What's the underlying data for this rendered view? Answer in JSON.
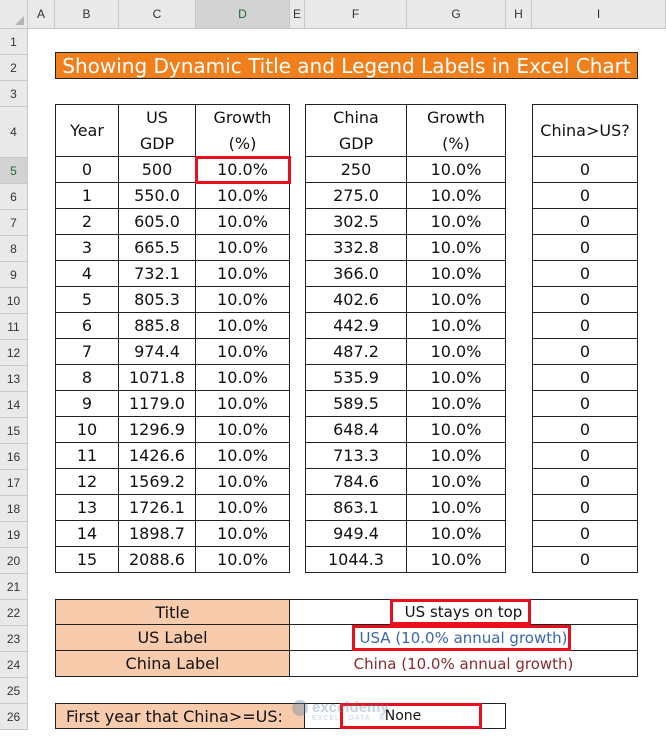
{
  "columns": [
    "A",
    "B",
    "C",
    "D",
    "E",
    "F",
    "G",
    "H",
    "I"
  ],
  "rows": [
    "1",
    "2",
    "3",
    "4",
    "5",
    "6",
    "7",
    "8",
    "9",
    "10",
    "11",
    "12",
    "13",
    "14",
    "15",
    "16",
    "17",
    "18",
    "19",
    "20",
    "21",
    "22",
    "23",
    "24",
    "25",
    "26"
  ],
  "banner": "Showing Dynamic Title and Legend Labels in Excel Chart",
  "headers": {
    "year": "Year",
    "us_gdp_1": "US",
    "us_gdp_2": "GDP",
    "us_growth_1": "Growth",
    "us_growth_2": "(%)",
    "china_gdp_1": "China",
    "china_gdp_2": "GDP",
    "china_growth_1": "Growth",
    "china_growth_2": "(%)",
    "china_gt_us": "China>US?"
  },
  "table": [
    [
      "0",
      "500",
      "10.0%",
      "250",
      "10.0%",
      "0"
    ],
    [
      "1",
      "550.0",
      "10.0%",
      "275.0",
      "10.0%",
      "0"
    ],
    [
      "2",
      "605.0",
      "10.0%",
      "302.5",
      "10.0%",
      "0"
    ],
    [
      "3",
      "665.5",
      "10.0%",
      "332.8",
      "10.0%",
      "0"
    ],
    [
      "4",
      "732.1",
      "10.0%",
      "366.0",
      "10.0%",
      "0"
    ],
    [
      "5",
      "805.3",
      "10.0%",
      "402.6",
      "10.0%",
      "0"
    ],
    [
      "6",
      "885.8",
      "10.0%",
      "442.9",
      "10.0%",
      "0"
    ],
    [
      "7",
      "974.4",
      "10.0%",
      "487.2",
      "10.0%",
      "0"
    ],
    [
      "8",
      "1071.8",
      "10.0%",
      "535.9",
      "10.0%",
      "0"
    ],
    [
      "9",
      "1179.0",
      "10.0%",
      "589.5",
      "10.0%",
      "0"
    ],
    [
      "10",
      "1296.9",
      "10.0%",
      "648.4",
      "10.0%",
      "0"
    ],
    [
      "11",
      "1426.6",
      "10.0%",
      "713.3",
      "10.0%",
      "0"
    ],
    [
      "12",
      "1569.2",
      "10.0%",
      "784.6",
      "10.0%",
      "0"
    ],
    [
      "13",
      "1726.1",
      "10.0%",
      "863.1",
      "10.0%",
      "0"
    ],
    [
      "14",
      "1898.7",
      "10.0%",
      "949.4",
      "10.0%",
      "0"
    ],
    [
      "15",
      "2088.6",
      "10.0%",
      "1044.3",
      "10.0%",
      "0"
    ]
  ],
  "labels": {
    "title_label": "Title",
    "title_value": "US stays on top",
    "us_label": "US Label",
    "us_value": "USA (10.0% annual growth)",
    "china_label": "China Label",
    "china_value": "China (10.0% annual growth)"
  },
  "first_year": {
    "label": "First year that China>=US:",
    "value": "None"
  },
  "watermark": {
    "brand": "exceldemy",
    "tagline": "EXCEL · DATA · BI"
  },
  "colors": {
    "banner": "#f07f1c",
    "peach": "#f8cbad",
    "highlight": "#e8101d",
    "us_text": "#3a66b3",
    "china_text": "#8a2a2a"
  }
}
